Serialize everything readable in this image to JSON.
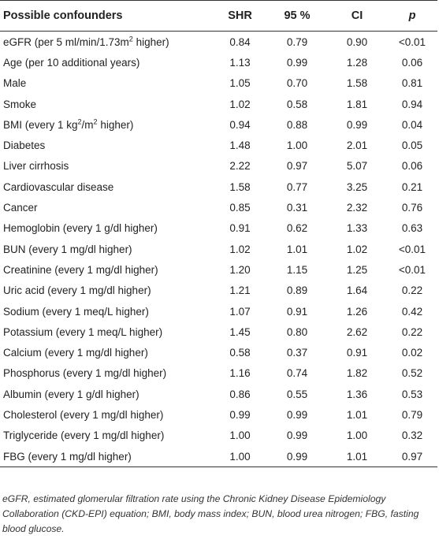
{
  "table": {
    "headers": {
      "name": "Possible confounders",
      "shr": "SHR",
      "ci_low": "95 %",
      "ci_high": "CI",
      "p": "p"
    },
    "rows": [
      {
        "name": "eGFR (per 5 ml/min/1.73m",
        "sup": "2",
        "name_suffix": " higher)",
        "shr": "0.84",
        "ci_low": "0.79",
        "ci_high": "0.90",
        "p": "<0.01"
      },
      {
        "name": "Age (per 10 additional years)",
        "shr": "1.13",
        "ci_low": "0.99",
        "ci_high": "1.28",
        "p": "0.06"
      },
      {
        "name": "Male",
        "shr": "1.05",
        "ci_low": "0.70",
        "ci_high": "1.58",
        "p": "0.81"
      },
      {
        "name": "Smoke",
        "shr": "1.02",
        "ci_low": "0.58",
        "ci_high": "1.81",
        "p": "0.94"
      },
      {
        "name": "BMI (every 1 kg",
        "sup": "2",
        "name_suffix": "/m",
        "sup2": "2",
        "name_suffix2": " higher)",
        "shr": "0.94",
        "ci_low": "0.88",
        "ci_high": "0.99",
        "p": "0.04"
      },
      {
        "name": "Diabetes",
        "shr": "1.48",
        "ci_low": "1.00",
        "ci_high": "2.01",
        "p": "0.05"
      },
      {
        "name": "Liver cirrhosis",
        "shr": "2.22",
        "ci_low": "0.97",
        "ci_high": "5.07",
        "p": "0.06"
      },
      {
        "name": "Cardiovascular disease",
        "shr": "1.58",
        "ci_low": "0.77",
        "ci_high": "3.25",
        "p": "0.21"
      },
      {
        "name": "Cancer",
        "shr": "0.85",
        "ci_low": "0.31",
        "ci_high": "2.32",
        "p": "0.76"
      },
      {
        "name": "Hemoglobin (every 1 g/dl higher)",
        "shr": "0.91",
        "ci_low": "0.62",
        "ci_high": "1.33",
        "p": "0.63"
      },
      {
        "name": "BUN (every 1 mg/dl higher)",
        "shr": "1.02",
        "ci_low": "1.01",
        "ci_high": "1.02",
        "p": "<0.01"
      },
      {
        "name": "Creatinine (every 1 mg/dl higher)",
        "shr": "1.20",
        "ci_low": "1.15",
        "ci_high": "1.25",
        "p": "<0.01"
      },
      {
        "name": "Uric acid (every 1 mg/dl higher)",
        "shr": "1.21",
        "ci_low": "0.89",
        "ci_high": "1.64",
        "p": "0.22"
      },
      {
        "name": "Sodium (every 1 meq/L higher)",
        "shr": "1.07",
        "ci_low": "0.91",
        "ci_high": "1.26",
        "p": "0.42"
      },
      {
        "name": "Potassium (every 1 meq/L higher)",
        "shr": "1.45",
        "ci_low": "0.80",
        "ci_high": "2.62",
        "p": "0.22"
      },
      {
        "name": "Calcium (every 1 mg/dl higher)",
        "shr": "0.58",
        "ci_low": "0.37",
        "ci_high": "0.91",
        "p": "0.02"
      },
      {
        "name": "Phosphorus (every 1 mg/dl higher)",
        "shr": "1.16",
        "ci_low": "0.74",
        "ci_high": "1.82",
        "p": "0.52"
      },
      {
        "name": "Albumin (every 1 g/dl higher)",
        "shr": "0.86",
        "ci_low": "0.55",
        "ci_high": "1.36",
        "p": "0.53"
      },
      {
        "name": "Cholesterol (every 1 mg/dl higher)",
        "shr": "0.99",
        "ci_low": "0.99",
        "ci_high": "1.01",
        "p": "0.79"
      },
      {
        "name": "Triglyceride (every 1 mg/dl higher)",
        "shr": "1.00",
        "ci_low": "0.99",
        "ci_high": "1.00",
        "p": "0.32"
      },
      {
        "name": "FBG (every 1 mg/dl higher)",
        "shr": "1.00",
        "ci_low": "0.99",
        "ci_high": "1.01",
        "p": "0.97"
      }
    ]
  },
  "footnote": "eGFR, estimated glomerular filtration rate using the Chronic Kidney Disease Epidemiology Collaboration (CKD-EPI) equation; BMI, body mass index; BUN, blood urea nitrogen; FBG, fasting blood glucose."
}
